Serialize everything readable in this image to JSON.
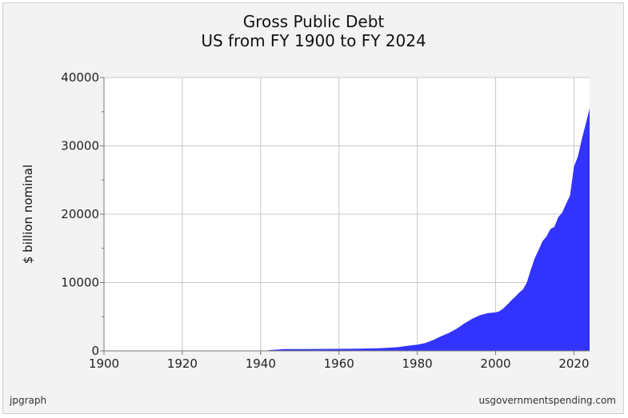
{
  "chart_data": {
    "type": "area",
    "title": "Gross Public Debt",
    "subtitle": "US from FY 1900 to FY 2024",
    "xlabel": "",
    "ylabel": "$ billion nominal",
    "xlim": [
      1900,
      2024
    ],
    "ylim": [
      0,
      40000
    ],
    "x_ticks": [
      1900,
      1920,
      1940,
      1960,
      1980,
      2000,
      2020
    ],
    "y_ticks": [
      0,
      10000,
      20000,
      30000,
      40000
    ],
    "grid": true,
    "fill_color": "#3333ff",
    "x": [
      1942,
      1946,
      1950,
      1955,
      1960,
      1965,
      1970,
      1972,
      1975,
      1978,
      1980,
      1982,
      1984,
      1986,
      1988,
      1990,
      1992,
      1994,
      1996,
      1998,
      2000,
      2001,
      2002,
      2003,
      2004,
      2005,
      2006,
      2007,
      2008,
      2009,
      2010,
      2011,
      2012,
      2013,
      2014,
      2015,
      2016,
      2017,
      2018,
      2019,
      2020,
      2021,
      2022,
      2023,
      2024
    ],
    "values": [
      100,
      270,
      260,
      280,
      290,
      320,
      380,
      440,
      540,
      780,
      910,
      1140,
      1560,
      2120,
      2600,
      3210,
      4000,
      4690,
      5220,
      5530,
      5630,
      5810,
      6230,
      6780,
      7380,
      7930,
      8510,
      9000,
      10030,
      11910,
      13560,
      14790,
      16070,
      16740,
      17820,
      18150,
      19570,
      20240,
      21520,
      22720,
      26950,
      28430,
      30930,
      33170,
      35460
    ]
  },
  "footer": {
    "left": "jpgraph",
    "right": "usgovernmentspending.com"
  }
}
